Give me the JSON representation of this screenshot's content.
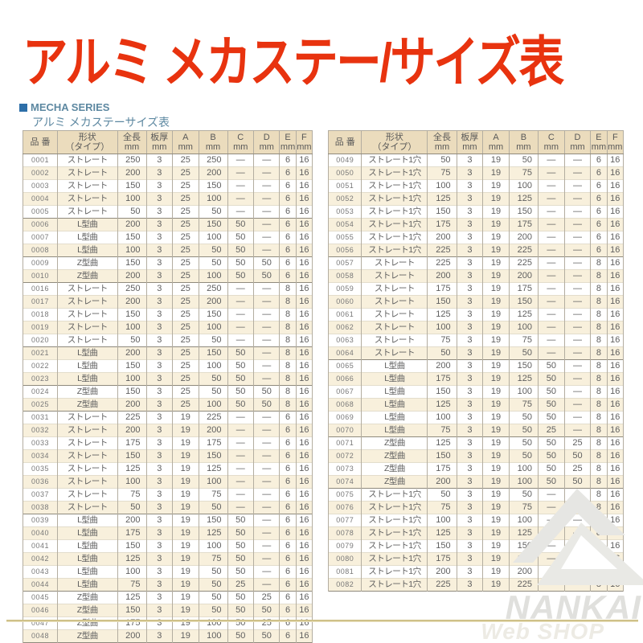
{
  "title": "アルミ メカステー/サイズ表",
  "series_label": "MECHA SERIES",
  "subtitle": "アルミ メカステーサイズ表",
  "colors": {
    "title_red": "#e8330f",
    "heading_blue": "#5d88a1",
    "bullet_blue": "#2d6fa8",
    "header_beige": "#ebdcbd",
    "stripe_cream": "#f8f0dc",
    "rule_olive": "#cfc189",
    "watermark_gray": "#e0e0dd"
  },
  "headers": {
    "part_no": "品 番",
    "shape1": "形状",
    "shape2": "（タイプ）",
    "length": "全長",
    "thickness": "板厚",
    "a": "A",
    "b": "B",
    "c": "C",
    "d": "D",
    "e": "E",
    "f": "F",
    "unit": "mm"
  },
  "watermark": {
    "brand": "NANKAI",
    "sub": "Web SHOP"
  },
  "left_table": {
    "rows": [
      [
        "0001",
        "ストレート",
        "250",
        "3",
        "25",
        "250",
        "—",
        "—",
        "6",
        "16",
        0
      ],
      [
        "0002",
        "ストレート",
        "200",
        "3",
        "25",
        "200",
        "—",
        "—",
        "6",
        "16",
        0
      ],
      [
        "0003",
        "ストレート",
        "150",
        "3",
        "25",
        "150",
        "—",
        "—",
        "6",
        "16",
        0
      ],
      [
        "0004",
        "ストレート",
        "100",
        "3",
        "25",
        "100",
        "—",
        "—",
        "6",
        "16",
        0
      ],
      [
        "0005",
        "ストレート",
        "50",
        "3",
        "25",
        "50",
        "—",
        "—",
        "6",
        "16",
        0
      ],
      [
        "0006",
        "L型曲",
        "200",
        "3",
        "25",
        "150",
        "50",
        "—",
        "6",
        "16",
        1
      ],
      [
        "0007",
        "L型曲",
        "150",
        "3",
        "25",
        "100",
        "50",
        "—",
        "6",
        "16",
        0
      ],
      [
        "0008",
        "L型曲",
        "100",
        "3",
        "25",
        "50",
        "50",
        "—",
        "6",
        "16",
        0
      ],
      [
        "0009",
        "Z型曲",
        "150",
        "3",
        "25",
        "50",
        "50",
        "50",
        "6",
        "16",
        1
      ],
      [
        "0010",
        "Z型曲",
        "200",
        "3",
        "25",
        "100",
        "50",
        "50",
        "6",
        "16",
        0
      ],
      [
        "0016",
        "ストレート",
        "250",
        "3",
        "25",
        "250",
        "—",
        "—",
        "8",
        "16",
        1
      ],
      [
        "0017",
        "ストレート",
        "200",
        "3",
        "25",
        "200",
        "—",
        "—",
        "8",
        "16",
        0
      ],
      [
        "0018",
        "ストレート",
        "150",
        "3",
        "25",
        "150",
        "—",
        "—",
        "8",
        "16",
        0
      ],
      [
        "0019",
        "ストレート",
        "100",
        "3",
        "25",
        "100",
        "—",
        "—",
        "8",
        "16",
        0
      ],
      [
        "0020",
        "ストレート",
        "50",
        "3",
        "25",
        "50",
        "—",
        "—",
        "8",
        "16",
        0
      ],
      [
        "0021",
        "L型曲",
        "200",
        "3",
        "25",
        "150",
        "50",
        "—",
        "8",
        "16",
        1
      ],
      [
        "0022",
        "L型曲",
        "150",
        "3",
        "25",
        "100",
        "50",
        "—",
        "8",
        "16",
        0
      ],
      [
        "0023",
        "L型曲",
        "100",
        "3",
        "25",
        "50",
        "50",
        "—",
        "8",
        "16",
        0
      ],
      [
        "0024",
        "Z型曲",
        "150",
        "3",
        "25",
        "50",
        "50",
        "50",
        "8",
        "16",
        1
      ],
      [
        "0025",
        "Z型曲",
        "200",
        "3",
        "25",
        "100",
        "50",
        "50",
        "8",
        "16",
        0
      ],
      [
        "0031",
        "ストレート",
        "225",
        "3",
        "19",
        "225",
        "—",
        "—",
        "6",
        "16",
        1
      ],
      [
        "0032",
        "ストレート",
        "200",
        "3",
        "19",
        "200",
        "—",
        "—",
        "6",
        "16",
        0
      ],
      [
        "0033",
        "ストレート",
        "175",
        "3",
        "19",
        "175",
        "—",
        "—",
        "6",
        "16",
        0
      ],
      [
        "0034",
        "ストレート",
        "150",
        "3",
        "19",
        "150",
        "—",
        "—",
        "6",
        "16",
        0
      ],
      [
        "0035",
        "ストレート",
        "125",
        "3",
        "19",
        "125",
        "—",
        "—",
        "6",
        "16",
        0
      ],
      [
        "0036",
        "ストレート",
        "100",
        "3",
        "19",
        "100",
        "—",
        "—",
        "6",
        "16",
        0
      ],
      [
        "0037",
        "ストレート",
        "75",
        "3",
        "19",
        "75",
        "—",
        "—",
        "6",
        "16",
        0
      ],
      [
        "0038",
        "ストレート",
        "50",
        "3",
        "19",
        "50",
        "—",
        "—",
        "6",
        "16",
        0
      ],
      [
        "0039",
        "L型曲",
        "200",
        "3",
        "19",
        "150",
        "50",
        "—",
        "6",
        "16",
        1
      ],
      [
        "0040",
        "L型曲",
        "175",
        "3",
        "19",
        "125",
        "50",
        "—",
        "6",
        "16",
        0
      ],
      [
        "0041",
        "L型曲",
        "150",
        "3",
        "19",
        "100",
        "50",
        "—",
        "6",
        "16",
        0
      ],
      [
        "0042",
        "L型曲",
        "125",
        "3",
        "19",
        "75",
        "50",
        "—",
        "6",
        "16",
        0
      ],
      [
        "0043",
        "L型曲",
        "100",
        "3",
        "19",
        "50",
        "50",
        "—",
        "6",
        "16",
        0
      ],
      [
        "0044",
        "L型曲",
        "75",
        "3",
        "19",
        "50",
        "25",
        "—",
        "6",
        "16",
        0
      ],
      [
        "0045",
        "Z型曲",
        "125",
        "3",
        "19",
        "50",
        "50",
        "25",
        "6",
        "16",
        1
      ],
      [
        "0046",
        "Z型曲",
        "150",
        "3",
        "19",
        "50",
        "50",
        "50",
        "6",
        "16",
        0
      ],
      [
        "0047",
        "Z型曲",
        "175",
        "3",
        "19",
        "100",
        "50",
        "25",
        "6",
        "16",
        0
      ],
      [
        "0048",
        "Z型曲",
        "200",
        "3",
        "19",
        "100",
        "50",
        "50",
        "6",
        "16",
        0
      ]
    ]
  },
  "right_table": {
    "rows": [
      [
        "0049",
        "ストレート1穴",
        "50",
        "3",
        "19",
        "50",
        "—",
        "—",
        "6",
        "16",
        0
      ],
      [
        "0050",
        "ストレート1穴",
        "75",
        "3",
        "19",
        "75",
        "—",
        "—",
        "6",
        "16",
        0
      ],
      [
        "0051",
        "ストレート1穴",
        "100",
        "3",
        "19",
        "100",
        "—",
        "—",
        "6",
        "16",
        0
      ],
      [
        "0052",
        "ストレート1穴",
        "125",
        "3",
        "19",
        "125",
        "—",
        "—",
        "6",
        "16",
        0
      ],
      [
        "0053",
        "ストレート1穴",
        "150",
        "3",
        "19",
        "150",
        "—",
        "—",
        "6",
        "16",
        0
      ],
      [
        "0054",
        "ストレート1穴",
        "175",
        "3",
        "19",
        "175",
        "—",
        "—",
        "6",
        "16",
        0
      ],
      [
        "0055",
        "ストレート1穴",
        "200",
        "3",
        "19",
        "200",
        "—",
        "—",
        "6",
        "16",
        0
      ],
      [
        "0056",
        "ストレート1穴",
        "225",
        "3",
        "19",
        "225",
        "—",
        "—",
        "6",
        "16",
        0
      ],
      [
        "0057",
        "ストレート",
        "225",
        "3",
        "19",
        "225",
        "—",
        "—",
        "8",
        "16",
        1
      ],
      [
        "0058",
        "ストレート",
        "200",
        "3",
        "19",
        "200",
        "—",
        "—",
        "8",
        "16",
        0
      ],
      [
        "0059",
        "ストレート",
        "175",
        "3",
        "19",
        "175",
        "—",
        "—",
        "8",
        "16",
        0
      ],
      [
        "0060",
        "ストレート",
        "150",
        "3",
        "19",
        "150",
        "—",
        "—",
        "8",
        "16",
        0
      ],
      [
        "0061",
        "ストレート",
        "125",
        "3",
        "19",
        "125",
        "—",
        "—",
        "8",
        "16",
        0
      ],
      [
        "0062",
        "ストレート",
        "100",
        "3",
        "19",
        "100",
        "—",
        "—",
        "8",
        "16",
        0
      ],
      [
        "0063",
        "ストレート",
        "75",
        "3",
        "19",
        "75",
        "—",
        "—",
        "8",
        "16",
        0
      ],
      [
        "0064",
        "ストレート",
        "50",
        "3",
        "19",
        "50",
        "—",
        "—",
        "8",
        "16",
        0
      ],
      [
        "0065",
        "L型曲",
        "200",
        "3",
        "19",
        "150",
        "50",
        "—",
        "8",
        "16",
        1
      ],
      [
        "0066",
        "L型曲",
        "175",
        "3",
        "19",
        "125",
        "50",
        "—",
        "8",
        "16",
        0
      ],
      [
        "0067",
        "L型曲",
        "150",
        "3",
        "19",
        "100",
        "50",
        "—",
        "8",
        "16",
        0
      ],
      [
        "0068",
        "L型曲",
        "125",
        "3",
        "19",
        "75",
        "50",
        "—",
        "8",
        "16",
        0
      ],
      [
        "0069",
        "L型曲",
        "100",
        "3",
        "19",
        "50",
        "50",
        "—",
        "8",
        "16",
        0
      ],
      [
        "0070",
        "L型曲",
        "75",
        "3",
        "19",
        "50",
        "25",
        "—",
        "8",
        "16",
        0
      ],
      [
        "0071",
        "Z型曲",
        "125",
        "3",
        "19",
        "50",
        "50",
        "25",
        "8",
        "16",
        1
      ],
      [
        "0072",
        "Z型曲",
        "150",
        "3",
        "19",
        "50",
        "50",
        "50",
        "8",
        "16",
        0
      ],
      [
        "0073",
        "Z型曲",
        "175",
        "3",
        "19",
        "100",
        "50",
        "25",
        "8",
        "16",
        0
      ],
      [
        "0074",
        "Z型曲",
        "200",
        "3",
        "19",
        "100",
        "50",
        "50",
        "8",
        "16",
        0
      ],
      [
        "0075",
        "ストレート1穴",
        "50",
        "3",
        "19",
        "50",
        "—",
        "—",
        "8",
        "16",
        1
      ],
      [
        "0076",
        "ストレート1穴",
        "75",
        "3",
        "19",
        "75",
        "—",
        "—",
        "8",
        "16",
        0
      ],
      [
        "0077",
        "ストレート1穴",
        "100",
        "3",
        "19",
        "100",
        "—",
        "—",
        "8",
        "16",
        0
      ],
      [
        "0078",
        "ストレート1穴",
        "125",
        "3",
        "19",
        "125",
        "—",
        "—",
        "8",
        "16",
        0
      ],
      [
        "0079",
        "ストレート1穴",
        "150",
        "3",
        "19",
        "150",
        "—",
        "—",
        "8",
        "16",
        0
      ],
      [
        "0080",
        "ストレート1穴",
        "175",
        "3",
        "19",
        "175",
        "—",
        "—",
        "8",
        "16",
        0
      ],
      [
        "0081",
        "ストレート1穴",
        "200",
        "3",
        "19",
        "200",
        "—",
        "—",
        "8",
        "16",
        0
      ],
      [
        "0082",
        "ストレート1穴",
        "225",
        "3",
        "19",
        "225",
        "—",
        "—",
        "8",
        "16",
        0
      ]
    ]
  }
}
